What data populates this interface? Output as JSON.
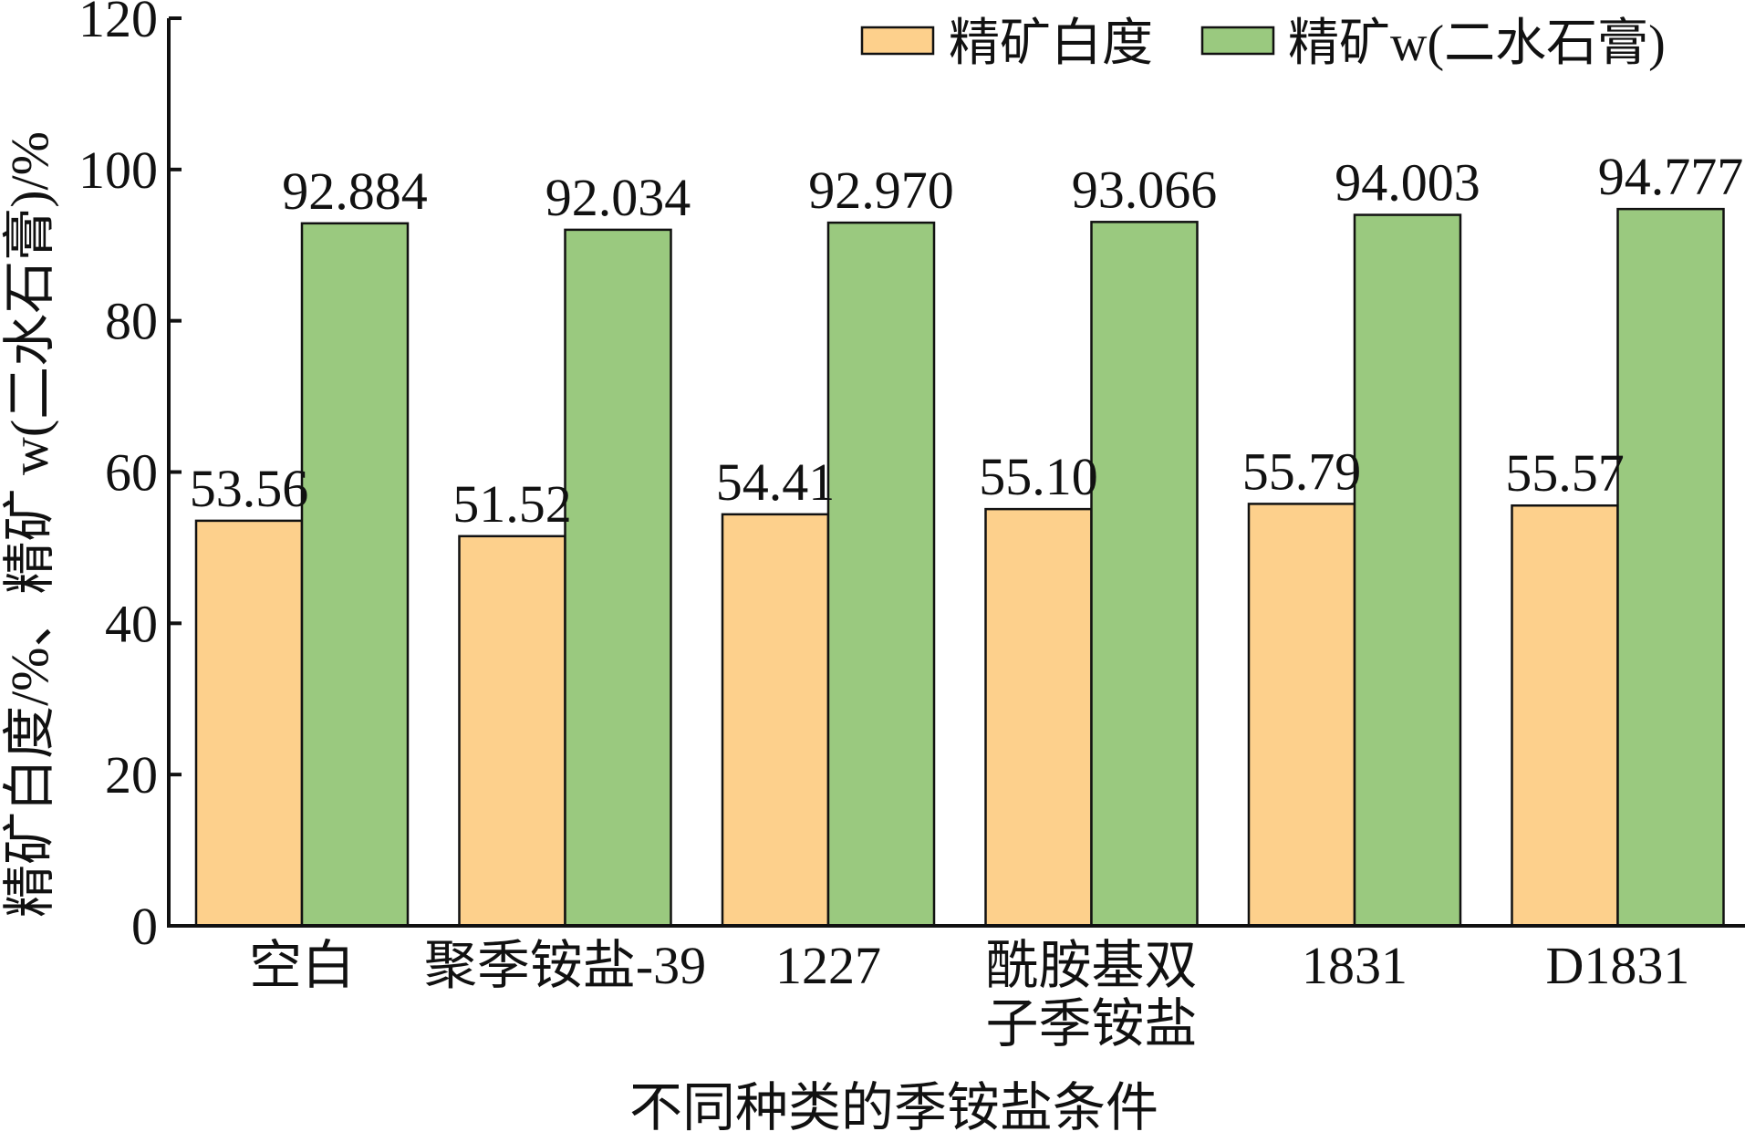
{
  "chart_data": {
    "type": "bar",
    "title": "",
    "xlabel": "不同种类的季铵盐条件",
    "ylabel": "精矿白度/%、精矿 w(二水石膏)/%",
    "ylim": [
      0,
      120
    ],
    "yticks": [
      0,
      20,
      40,
      60,
      80,
      100,
      120
    ],
    "categories": [
      [
        "空白"
      ],
      [
        "聚季铵盐-39"
      ],
      [
        "1227"
      ],
      [
        "酰胺基双",
        "子季铵盐"
      ],
      [
        "1831"
      ],
      [
        "D1831"
      ]
    ],
    "series": [
      {
        "name": "精矿白度",
        "values": [
          53.56,
          51.52,
          54.41,
          55.1,
          55.79,
          55.57
        ],
        "labels": [
          "53.56",
          "51.52",
          "54.41",
          "55.10",
          "55.79",
          "55.57"
        ],
        "color": "#fdd08c"
      },
      {
        "name": "精矿w(二水石膏)",
        "values": [
          92.884,
          92.034,
          92.97,
          93.066,
          94.003,
          94.777
        ],
        "labels": [
          "92.884",
          "92.034",
          "92.970",
          "93.066",
          "94.003",
          "94.777"
        ],
        "color": "#9ac97f"
      }
    ],
    "legend_position": "top-right",
    "grid": false
  }
}
